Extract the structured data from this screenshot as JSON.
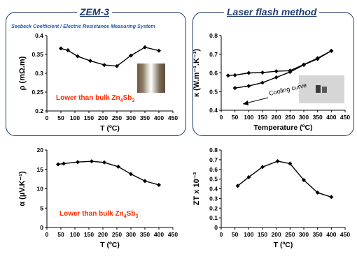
{
  "panels": {
    "left_title": "ZEM-3",
    "left_subtitle": "Seebeck Coefficient / Electric Resistance Measuring System",
    "right_title": "Laser flash method"
  },
  "chart_data": [
    {
      "type": "line",
      "ylabel": "ρ (mΩ.m)",
      "xlabel": "T (ºC)",
      "xlim": [
        0,
        450
      ],
      "ylim": [
        0.2,
        0.4
      ],
      "x_ticks": [
        0,
        50,
        100,
        150,
        200,
        250,
        300,
        350,
        400,
        450
      ],
      "y_ticks": [
        0.2,
        0.25,
        0.3,
        0.35,
        0.4
      ],
      "series": [
        {
          "x": [
            50,
            75,
            110,
            155,
            205,
            250,
            300,
            350,
            400
          ],
          "y": [
            0.366,
            0.361,
            0.345,
            0.333,
            0.322,
            0.319,
            0.347,
            0.369,
            0.36
          ]
        }
      ],
      "annotation": {
        "text": "Lower than bulk Zn",
        "sub1": "4",
        "mid": "Sb",
        "sub2": "3"
      },
      "grid": false
    },
    {
      "type": "line",
      "ylabel": "κ (W.m⁻¹.K⁻¹)",
      "xlabel": "Temperature (ºC)",
      "xlim": [
        0,
        450
      ],
      "ylim": [
        0.4,
        0.8
      ],
      "x_ticks": [
        0,
        50,
        100,
        150,
        200,
        250,
        300,
        350,
        400,
        450
      ],
      "y_ticks": [
        0.4,
        0.5,
        0.6,
        0.7,
        0.8
      ],
      "series": [
        {
          "x": [
            25,
            50,
            100,
            150,
            200,
            250,
            300,
            350,
            400
          ],
          "y": [
            0.586,
            0.588,
            0.6,
            0.602,
            0.609,
            0.612,
            0.645,
            0.679,
            0.718
          ]
        },
        {
          "x": [
            50,
            100,
            150,
            200,
            250,
            300,
            350,
            400
          ],
          "y": [
            0.519,
            0.53,
            0.548,
            0.576,
            0.605,
            0.643,
            0.675,
            0.718
          ]
        }
      ],
      "annotation": {
        "text": "Cooling curve"
      },
      "grid": false
    },
    {
      "type": "line",
      "ylabel": "α (µV.K⁻¹)",
      "xlabel": "T (ºC)",
      "xlim": [
        0,
        450
      ],
      "ylim": [
        0,
        20
      ],
      "x_ticks": [
        0,
        50,
        100,
        150,
        200,
        250,
        300,
        350,
        400,
        450
      ],
      "y_ticks": [
        0,
        5,
        10,
        15,
        20
      ],
      "series": [
        {
          "x": [
            40,
            60,
            110,
            160,
            205,
            255,
            300,
            350,
            400
          ],
          "y": [
            16.3,
            16.5,
            16.9,
            17.1,
            16.8,
            15.7,
            13.8,
            12.0,
            11.0
          ]
        }
      ],
      "annotation": {
        "text": "Lower than bulk Zn",
        "sub1": "4",
        "mid": "Sb",
        "sub2": "3"
      },
      "grid": false
    },
    {
      "type": "line",
      "ylabel": "ZT x 10⁻³",
      "xlabel": "T (ºC)",
      "xlim": [
        0,
        450
      ],
      "ylim": [
        0,
        0.8
      ],
      "x_ticks": [
        0,
        50,
        100,
        150,
        200,
        250,
        300,
        350,
        400,
        450
      ],
      "y_ticks": [
        0,
        0.1,
        0.2,
        0.3,
        0.4,
        0.5,
        0.6,
        0.7,
        0.8
      ],
      "series": [
        {
          "x": [
            60,
            100,
            150,
            205,
            250,
            300,
            350,
            400
          ],
          "y": [
            0.43,
            0.52,
            0.625,
            0.685,
            0.66,
            0.49,
            0.36,
            0.315
          ]
        }
      ],
      "grid": false
    }
  ]
}
